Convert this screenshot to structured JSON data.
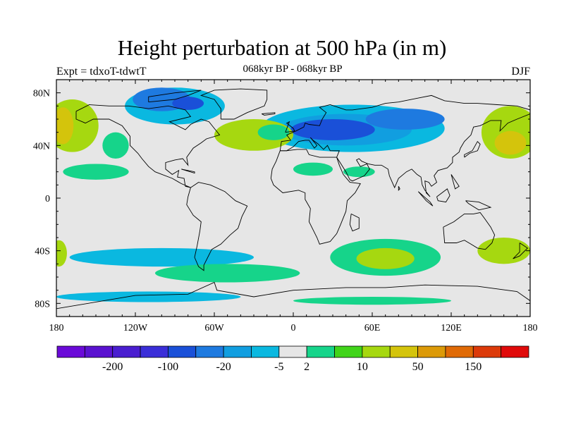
{
  "title": "Height perturbation at 500 hPa (in m)",
  "subtitle": "068kyr BP - 068kyr BP",
  "experiment": "Expt = tdxoT-tdwtT",
  "season": "DJF",
  "map": {
    "projection": "cylindrical-equidistant",
    "lon_range": [
      -180,
      180
    ],
    "lat_range": [
      -90,
      90
    ],
    "land_outline_color": "#000000",
    "background_fill": "#e6e6e6"
  },
  "axes": {
    "x_ticks": [
      {
        "value": -180,
        "label": "180"
      },
      {
        "value": -120,
        "label": "120W"
      },
      {
        "value": -60,
        "label": "60W"
      },
      {
        "value": 0,
        "label": "0"
      },
      {
        "value": 60,
        "label": "60E"
      },
      {
        "value": 120,
        "label": "120E"
      },
      {
        "value": 180,
        "label": "180"
      }
    ],
    "y_ticks": [
      {
        "value": 80,
        "label": "80N"
      },
      {
        "value": 40,
        "label": "40N"
      },
      {
        "value": 0,
        "label": "0"
      },
      {
        "value": -40,
        "label": "40S"
      },
      {
        "value": -80,
        "label": "80S"
      }
    ]
  },
  "colorbar": {
    "colors": [
      "#6a0ad8",
      "#5a12d0",
      "#4a1ed0",
      "#3a2ed8",
      "#1a50d8",
      "#1e7ae0",
      "#119ee0",
      "#0ab8e0",
      "#e6e6e6",
      "#16d48a",
      "#40d41a",
      "#a6d810",
      "#d4c40c",
      "#dc9a08",
      "#e06a06",
      "#dc3a0a",
      "#e00a0a"
    ],
    "labels": [
      "-200",
      "-100",
      "-20",
      "-5",
      "2",
      "10",
      "50",
      "150"
    ],
    "label_positions": [
      2,
      4,
      6,
      8,
      9,
      11,
      13,
      15
    ]
  },
  "contour_regions": [
    {
      "lon": -90,
      "lat": 70,
      "rx": 38,
      "ry": 14,
      "color": "#0ab8e0"
    },
    {
      "lon": -100,
      "lat": 75,
      "rx": 22,
      "ry": 9,
      "color": "#1e7ae0"
    },
    {
      "lon": -80,
      "lat": 72,
      "rx": 12,
      "ry": 5,
      "color": "#1a50d8"
    },
    {
      "lon": 45,
      "lat": 53,
      "rx": 70,
      "ry": 18,
      "color": "#0ab8e0"
    },
    {
      "lon": 40,
      "lat": 52,
      "rx": 50,
      "ry": 12,
      "color": "#119ee0"
    },
    {
      "lon": 30,
      "lat": 52,
      "rx": 32,
      "ry": 8,
      "color": "#1a50d8"
    },
    {
      "lon": 85,
      "lat": 60,
      "rx": 30,
      "ry": 8,
      "color": "#1e7ae0"
    },
    {
      "lon": -30,
      "lat": 48,
      "rx": 30,
      "ry": 12,
      "color": "#a6d810"
    },
    {
      "lon": -15,
      "lat": 50,
      "rx": 12,
      "ry": 6,
      "color": "#16d48a"
    },
    {
      "lon": -168,
      "lat": 55,
      "rx": 20,
      "ry": 20,
      "color": "#a6d810"
    },
    {
      "lon": -175,
      "lat": 55,
      "rx": 8,
      "ry": 14,
      "color": "#d4c40c"
    },
    {
      "lon": 165,
      "lat": 50,
      "rx": 22,
      "ry": 20,
      "color": "#a6d810"
    },
    {
      "lon": 165,
      "lat": 42,
      "rx": 12,
      "ry": 9,
      "color": "#d4c40c"
    },
    {
      "lon": -135,
      "lat": 40,
      "rx": 10,
      "ry": 10,
      "color": "#16d48a"
    },
    {
      "lon": -150,
      "lat": 20,
      "rx": 25,
      "ry": 6,
      "color": "#16d48a"
    },
    {
      "lon": 15,
      "lat": 22,
      "rx": 15,
      "ry": 5,
      "color": "#16d48a"
    },
    {
      "lon": 50,
      "lat": 20,
      "rx": 12,
      "ry": 4,
      "color": "#16d48a"
    },
    {
      "lon": -100,
      "lat": -45,
      "rx": 70,
      "ry": 7,
      "color": "#0ab8e0"
    },
    {
      "lon": 70,
      "lat": -45,
      "rx": 42,
      "ry": 14,
      "color": "#16d48a"
    },
    {
      "lon": 70,
      "lat": -46,
      "rx": 22,
      "ry": 8,
      "color": "#a6d810"
    },
    {
      "lon": 160,
      "lat": -40,
      "rx": 20,
      "ry": 10,
      "color": "#a6d810"
    },
    {
      "lon": -178,
      "lat": -42,
      "rx": 6,
      "ry": 10,
      "color": "#a6d810"
    },
    {
      "lon": -50,
      "lat": -57,
      "rx": 55,
      "ry": 7,
      "color": "#16d48a"
    },
    {
      "lon": -110,
      "lat": -75,
      "rx": 70,
      "ry": 4,
      "color": "#0ab8e0"
    },
    {
      "lon": 60,
      "lat": -78,
      "rx": 60,
      "ry": 3,
      "color": "#16d48a"
    }
  ]
}
